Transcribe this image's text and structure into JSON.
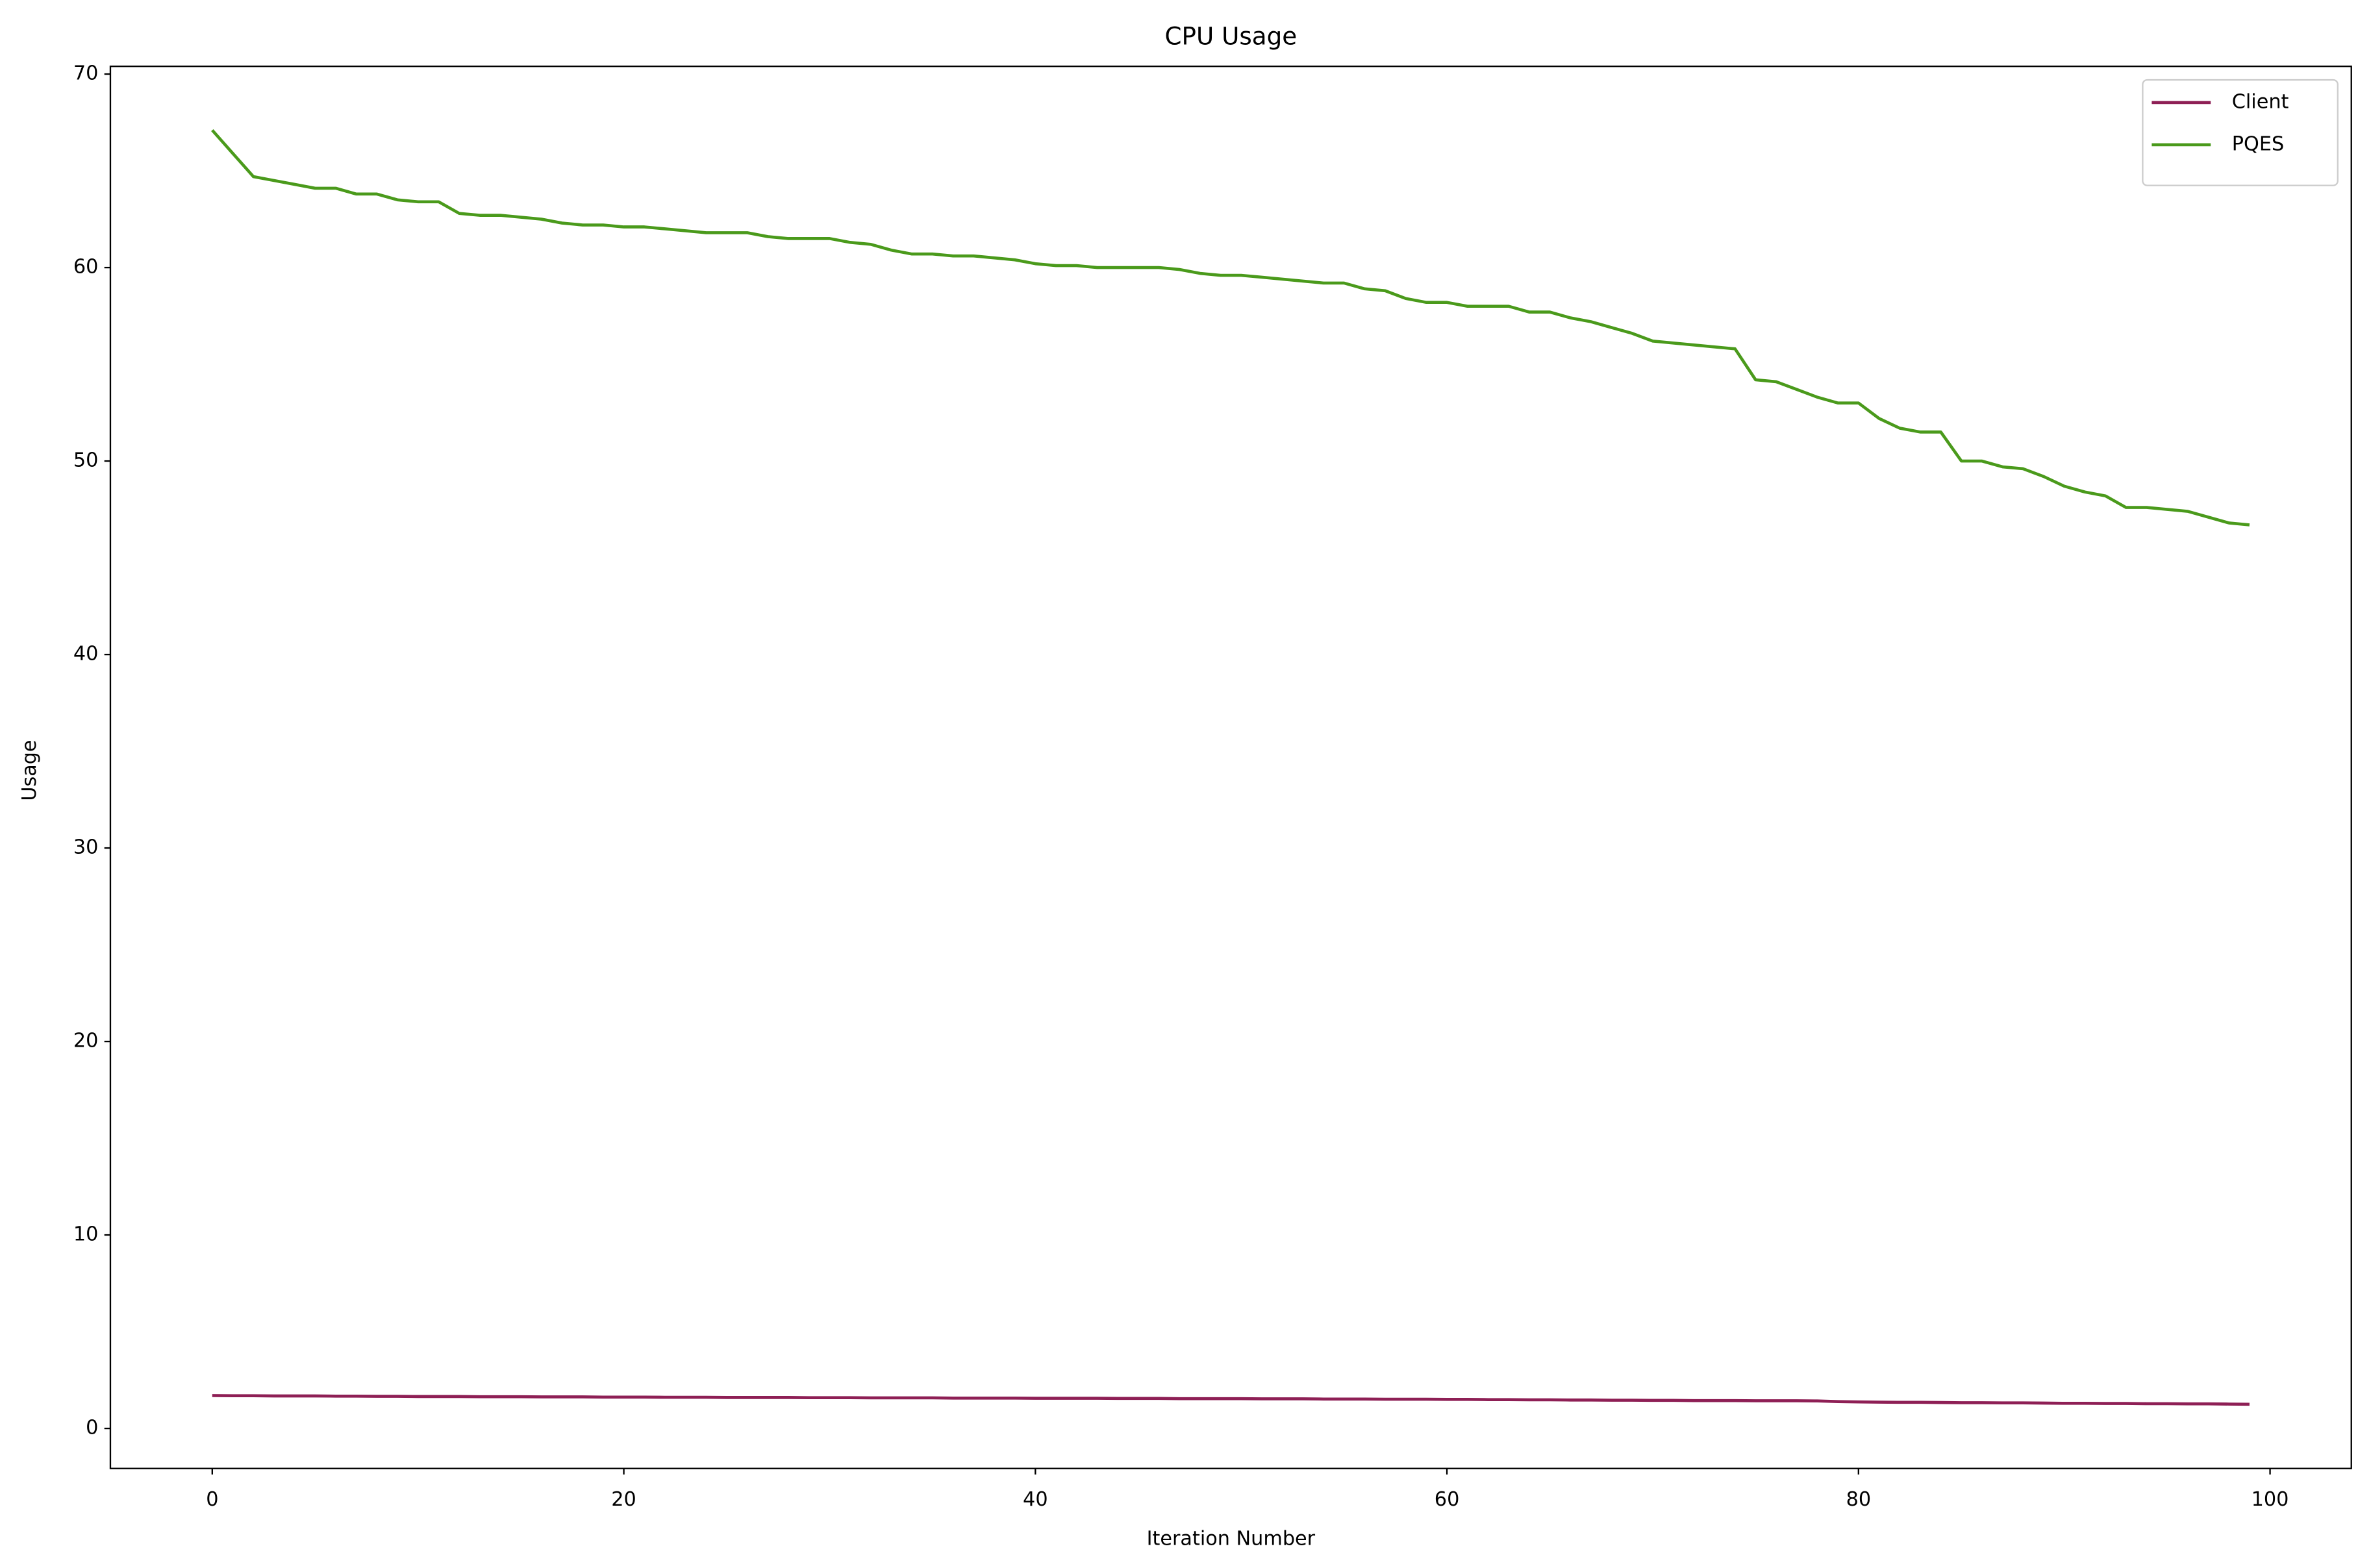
{
  "chart_data": {
    "type": "line",
    "title": "CPU Usage",
    "x_label": "Iteration Number",
    "y_label": "Usage",
    "x": [
      0,
      1,
      2,
      3,
      4,
      5,
      6,
      7,
      8,
      9,
      10,
      11,
      12,
      13,
      14,
      15,
      16,
      17,
      18,
      19,
      20,
      21,
      22,
      23,
      24,
      25,
      26,
      27,
      28,
      29,
      30,
      31,
      32,
      33,
      34,
      35,
      36,
      37,
      38,
      39,
      40,
      41,
      42,
      43,
      44,
      45,
      46,
      47,
      48,
      49,
      50,
      51,
      52,
      53,
      54,
      55,
      56,
      57,
      58,
      59,
      60,
      61,
      62,
      63,
      64,
      65,
      66,
      67,
      68,
      69,
      70,
      71,
      72,
      73,
      74,
      75,
      76,
      77,
      78,
      79,
      80,
      81,
      82,
      83,
      84,
      85,
      86,
      87,
      88,
      89,
      90,
      91,
      92,
      93,
      94,
      95,
      96,
      97,
      98,
      99
    ],
    "series": [
      {
        "name": "Client",
        "color": "#8e1f55",
        "values": [
          1.7,
          1.69,
          1.69,
          1.68,
          1.68,
          1.68,
          1.67,
          1.67,
          1.66,
          1.66,
          1.65,
          1.65,
          1.65,
          1.64,
          1.64,
          1.64,
          1.63,
          1.63,
          1.63,
          1.62,
          1.62,
          1.62,
          1.61,
          1.61,
          1.61,
          1.6,
          1.6,
          1.6,
          1.6,
          1.59,
          1.59,
          1.59,
          1.58,
          1.58,
          1.58,
          1.58,
          1.57,
          1.57,
          1.57,
          1.57,
          1.56,
          1.56,
          1.56,
          1.56,
          1.55,
          1.55,
          1.55,
          1.54,
          1.54,
          1.54,
          1.54,
          1.53,
          1.53,
          1.53,
          1.52,
          1.52,
          1.52,
          1.51,
          1.51,
          1.51,
          1.5,
          1.5,
          1.49,
          1.49,
          1.48,
          1.48,
          1.47,
          1.47,
          1.46,
          1.46,
          1.45,
          1.45,
          1.44,
          1.44,
          1.44,
          1.43,
          1.43,
          1.43,
          1.42,
          1.39,
          1.37,
          1.36,
          1.35,
          1.35,
          1.34,
          1.33,
          1.33,
          1.32,
          1.32,
          1.31,
          1.3,
          1.3,
          1.29,
          1.29,
          1.28,
          1.28,
          1.27,
          1.27,
          1.26,
          1.25
        ]
      },
      {
        "name": "PQES",
        "color": "#4a9a1b",
        "values": [
          67.1,
          65.9,
          64.7,
          64.5,
          64.3,
          64.1,
          64.1,
          63.8,
          63.8,
          63.5,
          63.4,
          63.4,
          62.8,
          62.7,
          62.7,
          62.6,
          62.5,
          62.3,
          62.2,
          62.2,
          62.1,
          62.1,
          62.0,
          61.9,
          61.8,
          61.8,
          61.8,
          61.6,
          61.5,
          61.5,
          61.5,
          61.3,
          61.2,
          60.9,
          60.7,
          60.7,
          60.6,
          60.6,
          60.5,
          60.4,
          60.2,
          60.1,
          60.1,
          60.0,
          60.0,
          60.0,
          60.0,
          59.9,
          59.7,
          59.6,
          59.6,
          59.5,
          59.4,
          59.3,
          59.2,
          59.2,
          58.9,
          58.8,
          58.4,
          58.2,
          58.2,
          58.0,
          58.0,
          58.0,
          57.7,
          57.7,
          57.4,
          57.2,
          56.9,
          56.6,
          56.2,
          56.1,
          56.0,
          55.9,
          55.8,
          54.2,
          54.1,
          53.7,
          53.3,
          53.0,
          53.0,
          52.2,
          51.7,
          51.5,
          51.5,
          50.0,
          50.0,
          49.7,
          49.6,
          49.2,
          48.7,
          48.4,
          48.2,
          47.6,
          47.6,
          47.5,
          47.4,
          47.1,
          46.8,
          46.7
        ]
      }
    ],
    "xlim": [
      -4.95,
      103.95
    ],
    "ylim": [
      -2.07,
      70.4
    ],
    "xticks": [
      0,
      20,
      40,
      60,
      80,
      100
    ],
    "yticks": [
      0,
      10,
      20,
      30,
      40,
      50,
      60,
      70
    ],
    "grid": false,
    "legend": "upper right"
  }
}
